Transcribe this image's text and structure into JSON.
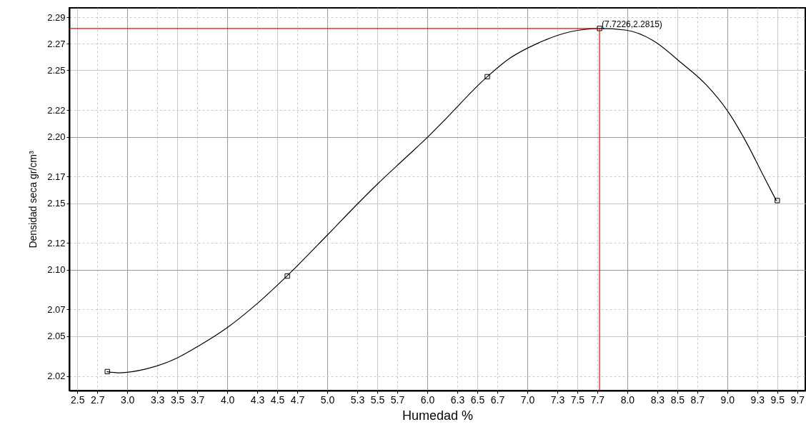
{
  "chart_data": {
    "type": "line",
    "xlabel": "Humedad %",
    "ylabel": "Densidad seca gr/cm³",
    "xlim": [
      2.42,
      9.78
    ],
    "ylim": [
      2.009,
      2.297
    ],
    "xticks": [
      2.5,
      2.7,
      {
        "value": 3,
        "label": "3.0"
      },
      3.3,
      3.5,
      3.7,
      {
        "value": 4,
        "label": "4.0"
      },
      4.3,
      4.5,
      4.7,
      {
        "value": 5,
        "label": "5.0"
      },
      5.3,
      5.5,
      5.7,
      {
        "value": 6,
        "label": "6.0"
      },
      6.3,
      6.5,
      6.7,
      {
        "value": 7,
        "label": "7.0"
      },
      7.3,
      7.5,
      7.7,
      {
        "value": 8,
        "label": "8.0"
      },
      8.3,
      8.5,
      8.7,
      {
        "value": 9,
        "label": "9.0"
      },
      9.3,
      9.5,
      9.7
    ],
    "yticks": [
      2.02,
      2.05,
      2.07,
      {
        "value": 2.1,
        "label": "2.10"
      },
      2.12,
      2.15,
      2.17,
      {
        "value": 2.2,
        "label": "2.20"
      },
      2.22,
      2.25,
      2.27,
      2.29
    ],
    "grid": true,
    "series": [
      {
        "type": "line",
        "color": "#000000",
        "marker": "none",
        "x": [
          2.797,
          2.925,
          3.19,
          3.5,
          3.72,
          4.0,
          4.276,
          4.596,
          5.0,
          5.306,
          5.5,
          5.78,
          6.01,
          6.15,
          6.6,
          6.82,
          7.1,
          7.43,
          7.7226,
          7.99,
          8.26,
          8.54,
          8.79,
          9.015,
          9.21,
          9.35,
          9.49
        ],
        "values": [
          2.0232,
          2.0224,
          2.0253,
          2.0336,
          2.0429,
          2.0564,
          2.073,
          2.0952,
          2.126,
          2.1498,
          2.1643,
          2.184,
          2.2002,
          2.2108,
          2.2452,
          2.2588,
          2.2702,
          2.279,
          2.2815,
          2.2802,
          2.2723,
          2.2556,
          2.239,
          2.2181,
          2.1931,
          2.1723,
          2.152
        ]
      },
      {
        "type": "scatter",
        "color": "#000000",
        "marker": "square",
        "x": [
          2.8,
          4.6,
          6.6,
          7.7226,
          9.5
        ],
        "values": [
          2.0233,
          2.0952,
          2.2452,
          2.2815,
          2.152
        ]
      }
    ],
    "ref_lines": [
      {
        "axis": "y",
        "value": 2.2815,
        "color": "#ff0000"
      },
      {
        "axis": "x",
        "value": 7.7226,
        "color": "#ff0000"
      }
    ],
    "annotations": [
      {
        "text": "(7.7226,2.2815)",
        "x": 7.7226,
        "y": 2.2815
      }
    ]
  }
}
